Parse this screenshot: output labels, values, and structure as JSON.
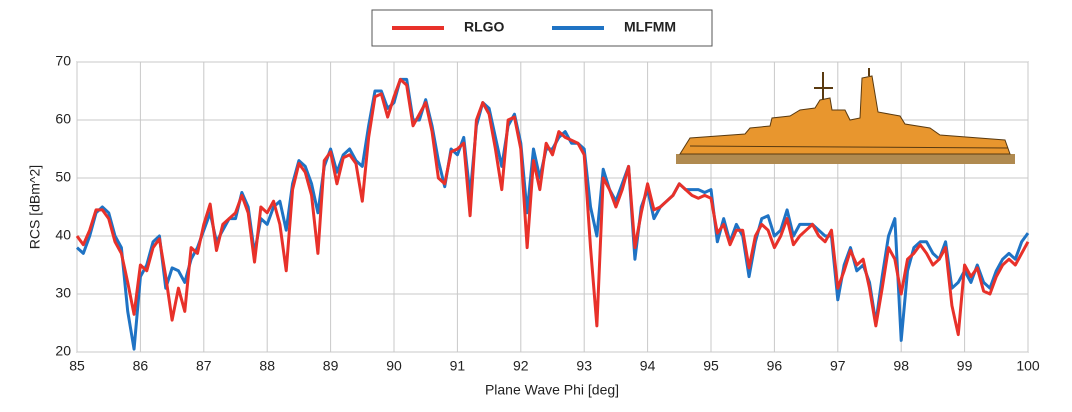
{
  "chart_data": {
    "type": "line",
    "xlabel": "Plane Wave Phi [deg]",
    "ylabel": "RCS [dBm^2]",
    "x": [
      85,
      85.1,
      85.2,
      85.3,
      85.4,
      85.5,
      85.6,
      85.7,
      85.8,
      85.9,
      86,
      86.1,
      86.2,
      86.3,
      86.4,
      86.5,
      86.6,
      86.7,
      86.8,
      86.9,
      87,
      87.1,
      87.2,
      87.3,
      87.4,
      87.5,
      87.6,
      87.7,
      87.8,
      87.9,
      88,
      88.1,
      88.2,
      88.3,
      88.4,
      88.5,
      88.6,
      88.7,
      88.8,
      88.9,
      89,
      89.1,
      89.2,
      89.3,
      89.4,
      89.5,
      89.6,
      89.7,
      89.8,
      89.9,
      90,
      90.1,
      90.2,
      90.3,
      90.4,
      90.5,
      90.6,
      90.7,
      90.8,
      90.9,
      91,
      91.1,
      91.2,
      91.3,
      91.4,
      91.5,
      91.6,
      91.7,
      91.8,
      91.9,
      92,
      92.1,
      92.2,
      92.3,
      92.4,
      92.5,
      92.6,
      92.7,
      92.8,
      92.9,
      93,
      93.1,
      93.2,
      93.3,
      93.4,
      93.5,
      93.6,
      93.7,
      93.8,
      93.9,
      94,
      94.1,
      94.2,
      94.3,
      94.4,
      94.5,
      94.6,
      94.7,
      94.8,
      94.9,
      95,
      95.1,
      95.2,
      95.3,
      95.4,
      95.5,
      95.6,
      95.7,
      95.8,
      95.9,
      96,
      96.1,
      96.2,
      96.3,
      96.4,
      96.5,
      96.6,
      96.7,
      96.8,
      96.9,
      97,
      97.1,
      97.2,
      97.3,
      97.4,
      97.5,
      97.6,
      97.7,
      97.8,
      97.9,
      98,
      98.1,
      98.2,
      98.3,
      98.4,
      98.5,
      98.6,
      98.7,
      98.8,
      98.9,
      99,
      99.1,
      99.2,
      99.3,
      99.4,
      99.5,
      99.6,
      99.7,
      99.8,
      99.9,
      100
    ],
    "series": [
      {
        "name": "RLGO",
        "color": "#e8312a",
        "values": [
          40,
          38.5,
          41,
          44.5,
          44.5,
          43,
          39,
          37,
          32,
          26.5,
          35,
          34,
          38,
          39.5,
          33,
          25.5,
          31,
          27,
          38,
          37,
          42,
          45.5,
          37.5,
          42,
          43,
          44,
          47,
          44,
          35.5,
          45,
          44,
          46,
          42,
          34,
          48,
          52.5,
          51,
          47,
          37,
          53,
          54.5,
          49,
          53.5,
          54,
          52.5,
          46,
          57,
          64,
          64.5,
          60.5,
          64,
          67,
          66,
          59,
          61,
          63,
          58,
          50,
          49,
          54.5,
          55,
          56,
          43.5,
          60,
          63,
          61,
          55,
          48,
          60,
          60.5,
          55,
          38,
          53,
          48,
          56,
          54,
          58,
          57,
          56.5,
          56,
          54,
          38,
          24.5,
          50,
          48,
          45,
          48,
          52,
          38,
          44,
          49,
          44.5,
          45,
          46,
          47,
          49,
          48,
          47,
          46.5,
          47,
          46.5,
          40.5,
          42,
          38.5,
          41,
          41,
          34.5,
          40,
          42,
          41,
          38,
          40,
          43,
          38.5,
          40,
          41,
          42,
          40,
          39,
          41,
          31,
          34,
          37.5,
          35,
          36,
          31,
          24.5,
          31,
          38,
          36,
          30,
          36,
          37,
          38.5,
          37,
          35,
          36,
          38,
          28,
          23,
          35,
          33,
          34.5,
          30.5,
          30,
          33,
          35,
          36,
          35,
          37,
          39
        ]
      },
      {
        "name": "MLFMM",
        "color": "#1f73c4",
        "values": [
          38,
          37,
          40,
          44,
          45,
          44,
          40,
          38,
          27,
          20.5,
          33,
          35,
          39,
          40,
          31,
          34.5,
          34,
          32,
          36,
          38,
          41,
          44,
          39,
          41,
          43,
          43,
          47.5,
          45,
          37,
          43,
          42,
          45,
          46,
          41,
          49,
          53,
          52,
          49,
          44,
          52,
          55,
          51,
          54,
          55,
          53,
          52,
          59,
          65,
          65,
          62,
          63,
          67,
          67,
          60,
          60,
          63.5,
          59,
          53,
          48.5,
          55,
          54,
          57,
          47,
          59,
          63,
          62,
          57,
          52,
          59,
          61,
          56,
          44,
          55,
          50,
          55,
          55,
          57,
          58,
          56,
          56,
          55,
          45,
          40,
          51.5,
          48,
          46,
          49,
          52,
          36,
          45,
          48,
          43,
          45,
          46,
          47,
          49,
          48,
          48,
          48,
          47.5,
          48,
          39,
          43,
          39,
          42,
          40,
          33,
          39,
          43,
          43.5,
          40,
          41,
          44.5,
          40,
          42,
          42,
          42,
          41,
          40,
          40,
          29,
          35,
          38,
          34,
          35,
          32,
          25,
          33,
          40,
          43,
          22,
          34,
          38,
          39,
          39,
          37,
          36,
          39,
          31,
          32,
          34,
          32,
          35,
          32,
          31,
          34,
          36,
          37,
          36,
          39,
          40.5
        ]
      }
    ],
    "xlim": [
      85,
      100
    ],
    "xticks": [
      85,
      86,
      87,
      88,
      89,
      90,
      91,
      92,
      93,
      94,
      95,
      96,
      97,
      98,
      99,
      100
    ],
    "ylim": [
      20,
      70
    ],
    "yticks": [
      20,
      30,
      40,
      50,
      60,
      70
    ],
    "grid": true,
    "legend": "top"
  }
}
